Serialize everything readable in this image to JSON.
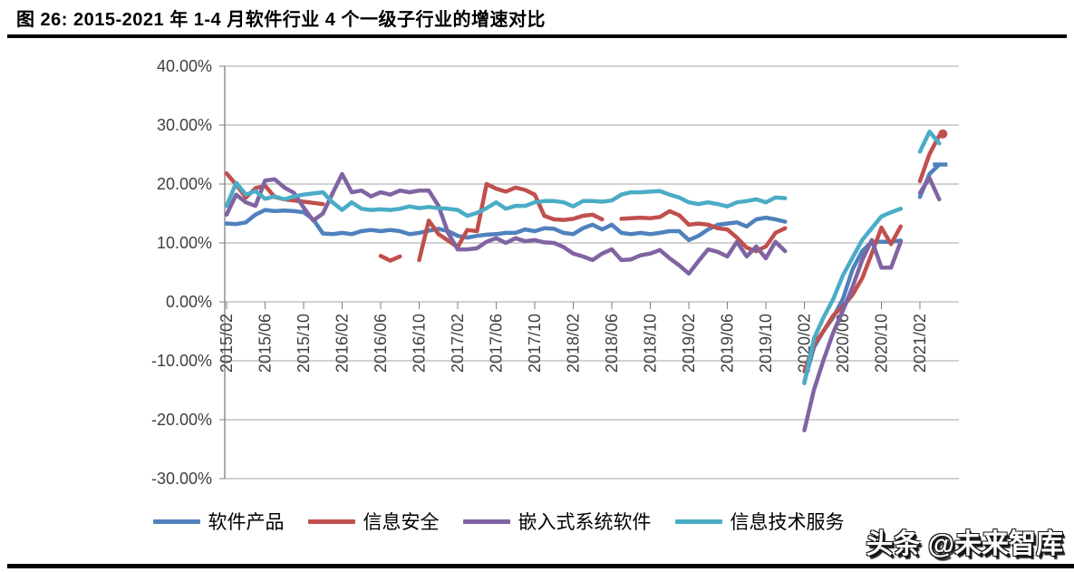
{
  "page": {
    "title": "图 26:  2015-2021 年 1-4 月软件行业 4 个一级子行业的增速对比",
    "watermark": "头条 @未来智库"
  },
  "chart_data": {
    "type": "line",
    "title": "2015-2021 年 1-4 月软件行业 4 个一级子行业的增速对比",
    "y_axis": {
      "min": -30,
      "max": 40,
      "step": 10,
      "tick_labels": [
        "40.00%",
        "30.00%",
        "20.00%",
        "10.00%",
        "0.00%",
        "-10.00%",
        "-20.00%",
        "-30.00%"
      ],
      "grid": true
    },
    "x_axis": {
      "start": "2015/02",
      "end": "2021/04",
      "unit": "month",
      "tick_labels": [
        "2015/02",
        "2015/06",
        "2015/10",
        "2016/02",
        "2016/06",
        "2016/10",
        "2017/02",
        "2017/06",
        "2017/10",
        "2018/02",
        "2018/06",
        "2018/10",
        "2019/02",
        "2019/06",
        "2019/10",
        "2020/02",
        "2020/06",
        "2020/10",
        "2021/02"
      ],
      "tick_every_n_months": 4
    },
    "legend_position": "bottom",
    "series": [
      {
        "name": "软件产品",
        "color": "#4F81BD",
        "end_marker": "dash",
        "values": [
          13.3,
          13.2,
          13.5,
          14.8,
          15.6,
          15.4,
          15.5,
          15.4,
          15.2,
          14.0,
          11.6,
          11.5,
          11.7,
          11.5,
          12.0,
          12.2,
          12.0,
          12.2,
          12.0,
          11.5,
          11.7,
          12.1,
          12.4,
          12.0,
          11.2,
          10.9,
          11.2,
          11.4,
          11.5,
          11.7,
          11.7,
          12.3,
          12.0,
          12.5,
          12.4,
          11.7,
          11.5,
          12.5,
          13.1,
          12.3,
          13.1,
          11.7,
          11.5,
          11.7,
          11.5,
          11.7,
          12.0,
          12.0,
          10.5,
          11.2,
          12.3,
          13.1,
          13.3,
          13.5,
          12.8,
          14.0,
          14.3,
          14.0,
          13.6,
          null,
          -13.5,
          -7.7,
          -4.9,
          -2.6,
          0.5,
          5.5,
          8.6,
          10.2,
          10.2,
          10.2,
          10.4,
          null,
          17.8,
          21.7,
          23.3
        ]
      },
      {
        "name": "信息安全",
        "color": "#C0504D",
        "end_marker": "dot",
        "values": [
          21.8,
          19.9,
          17.7,
          19.3,
          19.7,
          17.8,
          17.4,
          17.2,
          17.0,
          16.8,
          16.6,
          null,
          null,
          null,
          null,
          null,
          7.8,
          7.0,
          7.7,
          null,
          7.1,
          13.8,
          11.5,
          10.4,
          9.3,
          12.2,
          12.0,
          20.0,
          19.2,
          18.7,
          19.4,
          19.0,
          18.2,
          14.6,
          14.0,
          13.9,
          14.1,
          14.6,
          14.8,
          14.0,
          null,
          14.1,
          14.2,
          14.3,
          14.2,
          14.4,
          15.4,
          14.7,
          13.1,
          13.3,
          13.1,
          12.5,
          12.3,
          10.9,
          9.2,
          8.6,
          9.4,
          11.7,
          12.5,
          null,
          -11.8,
          -7.2,
          -4.9,
          -2.3,
          -0.8,
          1.2,
          4.0,
          8.2,
          12.6,
          9.8,
          12.8,
          null,
          20.5,
          25.1,
          28.2
        ]
      },
      {
        "name": "嵌入式系统软件",
        "color": "#8064A2",
        "end_marker": null,
        "values": [
          14.8,
          18.2,
          16.9,
          16.3,
          20.6,
          20.8,
          19.4,
          18.5,
          16.0,
          13.8,
          15.0,
          18.4,
          21.7,
          18.6,
          18.9,
          17.9,
          18.6,
          18.2,
          18.9,
          18.6,
          18.9,
          18.9,
          16.3,
          11.7,
          8.9,
          8.9,
          9.1,
          10.2,
          10.8,
          10.0,
          10.8,
          10.3,
          10.5,
          10.1,
          10.0,
          9.3,
          8.2,
          7.7,
          7.1,
          8.2,
          8.9,
          7.1,
          7.2,
          7.9,
          8.2,
          8.8,
          7.4,
          6.2,
          4.8,
          6.9,
          8.9,
          8.5,
          7.7,
          10.2,
          7.7,
          9.4,
          7.4,
          10.2,
          8.6,
          null,
          -21.8,
          -14.9,
          -9.8,
          -5.2,
          -1.5,
          2.5,
          7.1,
          10.5,
          5.8,
          5.8,
          10.2,
          null,
          18.5,
          21.0,
          17.4
        ]
      },
      {
        "name": "信息技术服务",
        "color": "#4BACC6",
        "end_marker": null,
        "values": [
          16.3,
          20.2,
          18.2,
          18.8,
          17.5,
          17.9,
          17.4,
          17.9,
          18.2,
          18.4,
          18.6,
          16.9,
          15.6,
          16.9,
          15.8,
          15.6,
          15.7,
          15.6,
          15.8,
          16.2,
          15.9,
          16.1,
          15.9,
          15.8,
          15.6,
          14.6,
          15.1,
          15.9,
          16.9,
          15.8,
          16.3,
          16.3,
          16.9,
          17.1,
          17.1,
          16.9,
          16.2,
          17.1,
          17.1,
          17.0,
          17.2,
          18.2,
          18.6,
          18.6,
          18.7,
          18.8,
          18.2,
          17.7,
          16.9,
          16.6,
          16.9,
          16.6,
          16.2,
          16.9,
          17.1,
          17.4,
          16.9,
          17.7,
          17.6,
          null,
          -13.8,
          -6.2,
          -2.6,
          0.5,
          4.5,
          7.5,
          10.5,
          12.5,
          14.5,
          15.2,
          15.8,
          null,
          25.5,
          28.9,
          26.9
        ]
      }
    ],
    "colors": {
      "grid": "#a6a6a6",
      "axis": "#808080",
      "tick_text": "#3f3f3f"
    }
  }
}
